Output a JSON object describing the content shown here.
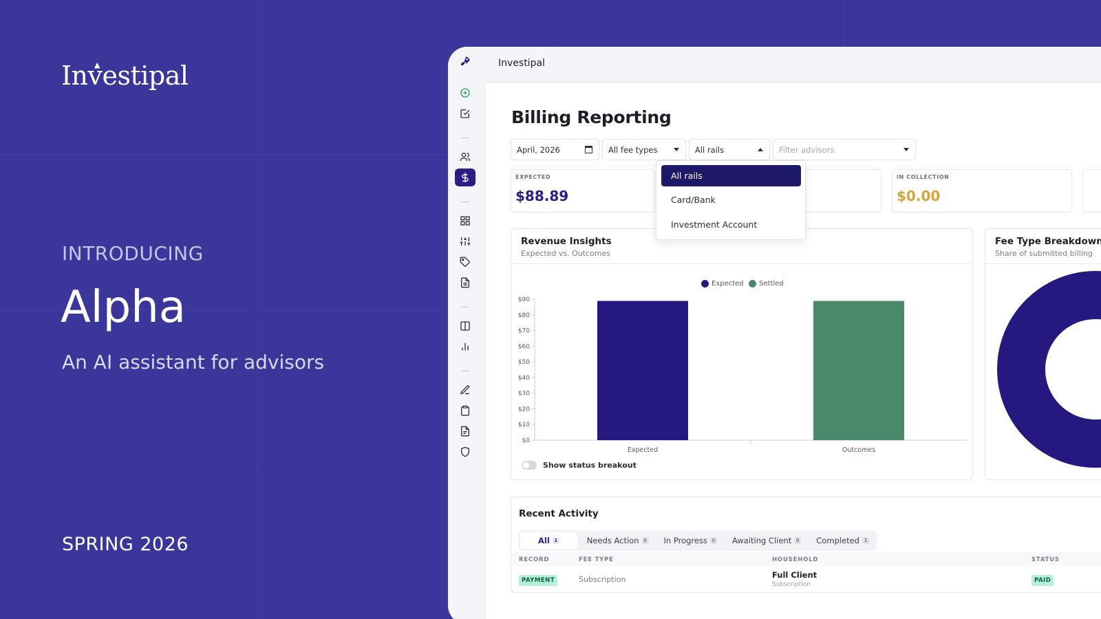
{
  "promo": {
    "brand": "Investipal",
    "intro": "INTRODUCING",
    "headline": "Alpha",
    "tagline": "An AI assistant for advisors",
    "season": "SPRING 2026"
  },
  "app": {
    "title": "Investipal",
    "rail_icons": [
      "rocket-logo-icon",
      "plus-circle-icon",
      "check-square-icon",
      "users-icon",
      "dollar-icon",
      "grid-icon",
      "sliders-icon",
      "tag-icon",
      "document-icon",
      "columns-icon",
      "bar-chart-icon",
      "pen-icon",
      "clipboard-icon",
      "file-text-icon",
      "shield-icon"
    ]
  },
  "page": {
    "title": "Billing Reporting",
    "filters": {
      "month": "April, 2026",
      "fee_types": "All fee types",
      "rails": "All rails",
      "advisors_placeholder": "Filter advisors"
    },
    "rails_dropdown": {
      "options": [
        "All rails",
        "Card/Bank",
        "Investment Account"
      ],
      "selected": "All rails"
    },
    "kpis": [
      {
        "label": "EXPECTED",
        "value": "$88.89",
        "color": "#2a1d86"
      },
      {
        "label": "IN COLLECTION",
        "value": "$0.00",
        "color": "#d4a63a"
      }
    ]
  },
  "revenue_card": {
    "title": "Revenue Insights",
    "subtitle": "Expected vs. Outcomes",
    "toggle_label": "Show status breakout"
  },
  "fee_card": {
    "title": "Fee Type Breakdown",
    "subtitle": "Share of submitted billing"
  },
  "chart_data": {
    "type": "bar",
    "categories": [
      "Expected",
      "Outcomes"
    ],
    "series": [
      {
        "name": "Expected",
        "color": "#25197f",
        "values": [
          88.89,
          null
        ]
      },
      {
        "name": "Settled",
        "color": "#4a8a6a",
        "values": [
          null,
          88.89
        ]
      }
    ],
    "yticks": [
      "$0",
      "$10",
      "$20",
      "$30",
      "$40",
      "$50",
      "$60",
      "$70",
      "$80",
      "$90"
    ],
    "ylim": [
      0,
      90
    ],
    "legend": "top-center",
    "grid": false
  },
  "activity": {
    "title": "Recent Activity",
    "tabs": [
      {
        "label": "All",
        "count": "1",
        "active": true
      },
      {
        "label": "Needs Action",
        "count": "0"
      },
      {
        "label": "In Progress",
        "count": "0"
      },
      {
        "label": "Awaiting Client",
        "count": "0"
      },
      {
        "label": "Completed",
        "count": "1"
      }
    ],
    "columns": [
      "RECORD",
      "FEE TYPE",
      "HOUSEHOLD",
      "STATUS"
    ],
    "rows": [
      {
        "record": "PAYMENT",
        "fee_type": "Subscription",
        "household": "Full Client",
        "household_sub": "Subscription",
        "status": "PAID"
      }
    ]
  }
}
